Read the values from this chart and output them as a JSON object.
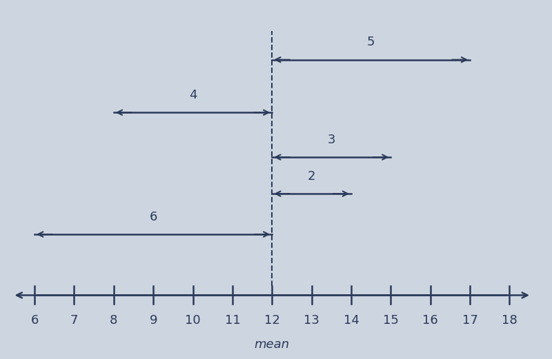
{
  "mean": 12,
  "number_line_start": 6,
  "number_line_end": 18,
  "tick_labels": [
    6,
    7,
    8,
    9,
    10,
    11,
    12,
    13,
    14,
    15,
    16,
    17,
    18
  ],
  "mean_label": "mean",
  "background_color": "#cdd5e0",
  "arrow_color": "#2b3a5a",
  "dashed_line_color": "#2b3a5a",
  "arrows": [
    {
      "label": "5",
      "x_start": 12,
      "x_end": 17,
      "y": 5.8
    },
    {
      "label": "4",
      "x_start": 8,
      "x_end": 12,
      "y": 4.5
    },
    {
      "label": "3",
      "x_start": 12,
      "x_end": 15,
      "y": 3.4
    },
    {
      "label": "2",
      "x_start": 12,
      "x_end": 14,
      "y": 2.5
    },
    {
      "label": "6",
      "x_start": 6,
      "x_end": 12,
      "y": 1.5
    }
  ],
  "number_line_y": 0.0,
  "dashed_line_y_top": 6.5,
  "xlim": [
    5.2,
    19.0
  ],
  "ylim": [
    -1.5,
    7.2
  ],
  "figsize": [
    8.0,
    5.21
  ],
  "dpi": 100,
  "font_size_labels": 13,
  "font_size_mean": 13,
  "font_size_numbers": 13
}
